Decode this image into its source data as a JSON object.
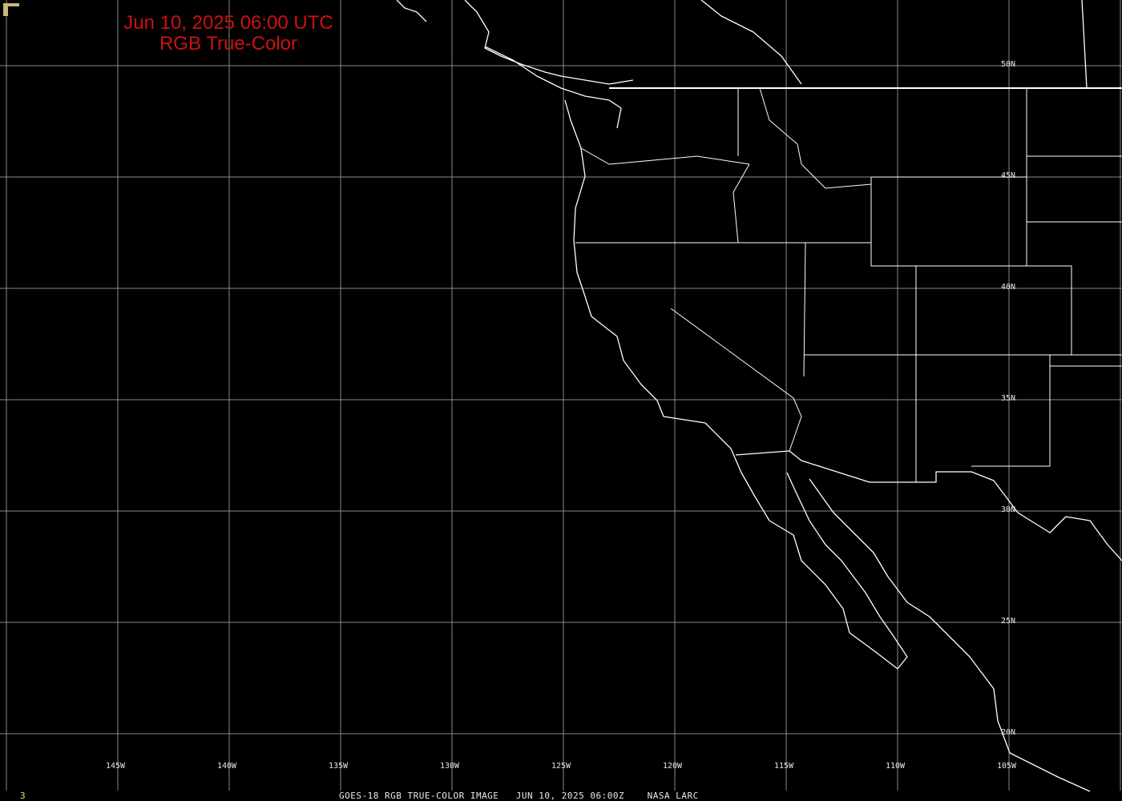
{
  "title": {
    "line1": "Jun 10, 2025 06:00 UTC",
    "line2": "RGB True-Color"
  },
  "lon_labels": [
    "145W",
    "140W",
    "135W",
    "130W",
    "125W",
    "120W",
    "115W",
    "110W",
    "105W"
  ],
  "lat_labels": [
    "50N",
    "45N",
    "40N",
    "35N",
    "30N",
    "25N",
    "20N"
  ],
  "footer": {
    "frame": "3",
    "caption": "GOES-18 RGB TRUE-COLOR IMAGE   JUN 10, 2025 06:00Z    NASA LARC"
  },
  "colors": {
    "title": "#d01010",
    "grid": "#8a8a8a",
    "coast": "#ffffff",
    "frame_number": "#e8e070",
    "background": "#000000"
  }
}
